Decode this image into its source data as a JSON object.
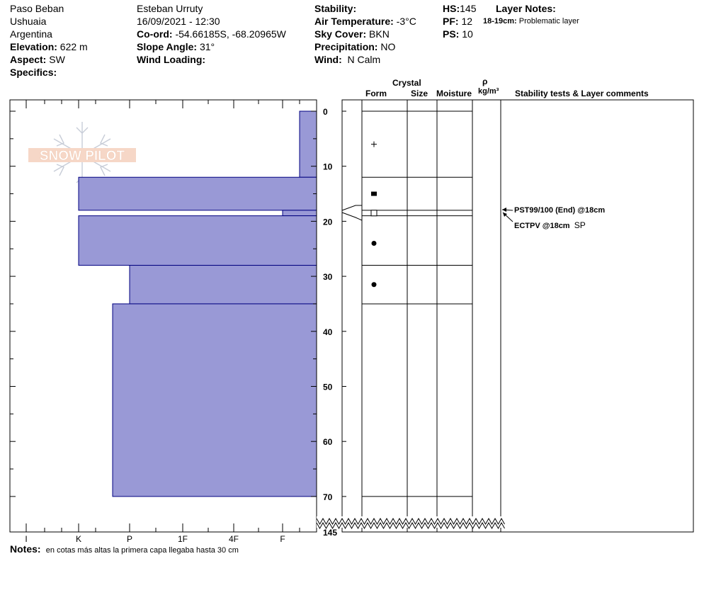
{
  "header": {
    "location": "Paso Beban",
    "region": "Ushuaia",
    "country": "Argentina",
    "elevation_label": "Elevation:",
    "elevation": "622 m",
    "aspect_label": "Aspect:",
    "aspect": "SW",
    "specifics_label": "Specifics:",
    "observer": "Esteban Urruty",
    "datetime": "16/09/2021 - 12:30",
    "coord_label": "Co-ord:",
    "coord": "-54.66185S, -68.20965W",
    "slope_label": "Slope Angle:",
    "slope": "31°",
    "wind_loading_label": "Wind Loading:",
    "stability_label": "Stability:",
    "air_temp_label": "Air Temperature:",
    "air_temp": "-3°C",
    "sky_label": "Sky Cover:",
    "sky": "BKN",
    "precip_label": "Precipitation:",
    "precip": "NO",
    "wind_label": "Wind:",
    "wind": "N Calm",
    "hs_label": "HS:",
    "hs": "145",
    "pf_label": "PF:",
    "pf": "12",
    "ps_label": "PS:",
    "ps": "10",
    "layer_notes_label": "Layer Notes:",
    "layer_note_range": "18-19cm:",
    "layer_note_text": "Problematic layer"
  },
  "columns": {
    "crystal": "Crystal",
    "form": "Form",
    "size": "Size",
    "moisture": "Moisture",
    "rho": "ρ",
    "density_unit": "kg/m³",
    "comments": "Stability tests & Layer comments"
  },
  "stability_tests": [
    {
      "text": "PST99/100 (End) @18cm",
      "extra": ""
    },
    {
      "text": "ECTPV @18cm",
      "extra": "SP"
    }
  ],
  "notes": {
    "label": "Notes:",
    "text": "en cotas más altas la primera capa llegaba hasta 30 cm"
  },
  "logo": "SNOW PILOT",
  "chart_data": {
    "type": "bar",
    "orientation": "horizontal",
    "title": "",
    "x_axis": {
      "label": "",
      "ticks": [
        "I",
        "K",
        "P",
        "1F",
        "4F",
        "F"
      ],
      "direction": "hardness decreases to the right"
    },
    "y_axis": {
      "label": "",
      "ticks": [
        0,
        10,
        20,
        30,
        40,
        50,
        60,
        70
      ],
      "break_label": "145",
      "ylim": [
        0,
        70
      ],
      "direction": "depth increases downward"
    },
    "layers": [
      {
        "top": 0,
        "bottom": 12,
        "hardness": "F+",
        "form": "+"
      },
      {
        "top": 12,
        "bottom": 18,
        "hardness": "K",
        "form": "■"
      },
      {
        "top": 18,
        "bottom": 19,
        "hardness": "F",
        "form": "□"
      },
      {
        "top": 19,
        "bottom": 28,
        "hardness": "K",
        "form": "●"
      },
      {
        "top": 28,
        "bottom": 35,
        "hardness": "P",
        "form": "●"
      },
      {
        "top": 35,
        "bottom": 70,
        "hardness": "K+",
        "form": ""
      }
    ],
    "fill_color": "#9999d6",
    "grid": false
  }
}
